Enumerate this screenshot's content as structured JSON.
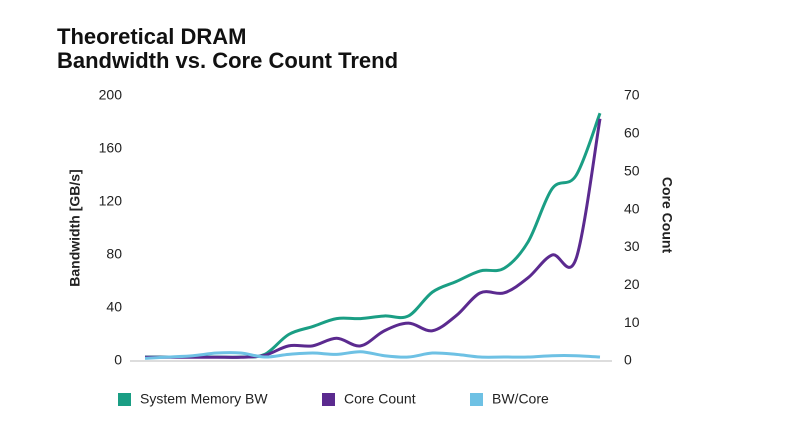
{
  "chart_data": {
    "type": "line",
    "title": [
      "Theoretical DRAM",
      "Bandwidth vs. Core Count Trend"
    ],
    "ylabel": "Bandwidth [GB/s]",
    "y2label": "Core Count",
    "categories": [
      null,
      null,
      null,
      null,
      null,
      null,
      null,
      null,
      null,
      null,
      null,
      null,
      null,
      null,
      null,
      null,
      null,
      null,
      null,
      null
    ],
    "ylim": [
      0,
      200
    ],
    "yticks": [
      0,
      40,
      80,
      120,
      160,
      200
    ],
    "y2lim": [
      0,
      70
    ],
    "y2ticks": [
      0,
      10,
      20,
      30,
      40,
      50,
      60,
      70
    ],
    "legend": "bottom",
    "series": [
      {
        "name": "System Memory BW",
        "color": "#1a9e84",
        "values": [
          3,
          3,
          3,
          3,
          3,
          5,
          20,
          26,
          32,
          32,
          34,
          34,
          52,
          60,
          68,
          70,
          90,
          130,
          140,
          187
        ]
      },
      {
        "name": "Core Count",
        "color": "#5b2a8f",
        "axis": "y2",
        "values": [
          1,
          1,
          1,
          1,
          1,
          1.5,
          4,
          4,
          6,
          4,
          8,
          10,
          8,
          12,
          18,
          18,
          22,
          28,
          27,
          64
        ]
      },
      {
        "name": "BW/Core",
        "color": "#6ec1e4",
        "values": [
          2,
          3,
          4,
          6,
          6,
          3,
          5,
          6,
          5,
          7,
          4,
          3,
          6,
          5,
          3,
          3,
          3,
          4,
          4,
          3
        ]
      }
    ]
  }
}
